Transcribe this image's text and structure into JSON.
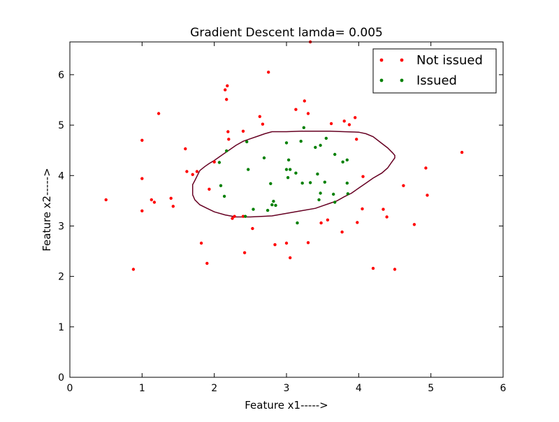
{
  "chart_data": {
    "type": "scatter",
    "title": "Gradient Descent lamda= 0.005",
    "xlabel": "Feature x1----->",
    "ylabel": "Feature x2----->",
    "xlim": [
      0,
      6
    ],
    "ylim": [
      0,
      6.65
    ],
    "xticks": [
      "0",
      "1",
      "2",
      "3",
      "4",
      "5",
      "6"
    ],
    "yticks": [
      "0",
      "1",
      "2",
      "3",
      "4",
      "5",
      "6"
    ],
    "grid": false,
    "legend_position": "top-right",
    "series": [
      {
        "name": "Not issued",
        "color": "#ff0000",
        "marker": "circle",
        "points": [
          [
            0.5,
            3.52
          ],
          [
            0.88,
            2.14
          ],
          [
            1.0,
            3.3
          ],
          [
            1.0,
            3.94
          ],
          [
            1.0,
            4.7
          ],
          [
            1.13,
            3.52
          ],
          [
            1.17,
            3.47
          ],
          [
            1.23,
            5.23
          ],
          [
            1.4,
            3.55
          ],
          [
            1.43,
            3.39
          ],
          [
            1.6,
            4.53
          ],
          [
            1.62,
            4.08
          ],
          [
            1.7,
            4.02
          ],
          [
            1.76,
            4.08
          ],
          [
            1.82,
            2.66
          ],
          [
            1.9,
            2.26
          ],
          [
            1.93,
            3.73
          ],
          [
            2.0,
            4.27
          ],
          [
            2.15,
            5.7
          ],
          [
            2.17,
            5.51
          ],
          [
            2.18,
            5.78
          ],
          [
            2.19,
            4.87
          ],
          [
            2.2,
            4.72
          ],
          [
            2.25,
            3.15
          ],
          [
            2.28,
            3.19
          ],
          [
            2.4,
            4.88
          ],
          [
            2.42,
            2.47
          ],
          [
            2.4,
            3.19
          ],
          [
            2.53,
            2.95
          ],
          [
            2.63,
            5.17
          ],
          [
            2.67,
            5.02
          ],
          [
            2.75,
            6.05
          ],
          [
            2.84,
            2.63
          ],
          [
            3.0,
            2.66
          ],
          [
            3.05,
            2.37
          ],
          [
            3.13,
            5.31
          ],
          [
            3.25,
            5.48
          ],
          [
            3.3,
            2.67
          ],
          [
            3.3,
            5.23
          ],
          [
            3.33,
            6.65
          ],
          [
            3.48,
            3.06
          ],
          [
            3.57,
            3.12
          ],
          [
            3.62,
            5.03
          ],
          [
            3.77,
            2.88
          ],
          [
            3.8,
            5.08
          ],
          [
            3.87,
            5.01
          ],
          [
            3.95,
            5.15
          ],
          [
            3.97,
            4.72
          ],
          [
            3.98,
            3.07
          ],
          [
            4.05,
            3.34
          ],
          [
            4.06,
            3.98
          ],
          [
            4.2,
            2.16
          ],
          [
            4.34,
            3.33
          ],
          [
            4.39,
            3.18
          ],
          [
            4.5,
            2.14
          ],
          [
            4.62,
            3.8
          ],
          [
            4.77,
            3.03
          ],
          [
            4.93,
            4.15
          ],
          [
            4.95,
            3.61
          ],
          [
            5.43,
            4.46
          ]
        ]
      },
      {
        "name": "Issued",
        "color": "#008000",
        "marker": "circle",
        "points": [
          [
            2.07,
            4.26
          ],
          [
            2.09,
            3.8
          ],
          [
            2.14,
            3.59
          ],
          [
            2.17,
            4.49
          ],
          [
            2.43,
            3.19
          ],
          [
            2.45,
            4.67
          ],
          [
            2.47,
            4.12
          ],
          [
            2.54,
            3.33
          ],
          [
            2.69,
            4.35
          ],
          [
            2.74,
            3.31
          ],
          [
            2.78,
            3.84
          ],
          [
            2.8,
            3.42
          ],
          [
            2.82,
            3.49
          ],
          [
            2.85,
            3.41
          ],
          [
            3.0,
            4.12
          ],
          [
            3.0,
            4.65
          ],
          [
            3.02,
            3.96
          ],
          [
            3.03,
            4.31
          ],
          [
            3.05,
            4.12
          ],
          [
            3.13,
            4.05
          ],
          [
            3.15,
            3.06
          ],
          [
            3.2,
            4.68
          ],
          [
            3.22,
            3.85
          ],
          [
            3.24,
            4.95
          ],
          [
            3.33,
            3.86
          ],
          [
            3.4,
            4.56
          ],
          [
            3.43,
            4.03
          ],
          [
            3.45,
            3.52
          ],
          [
            3.47,
            4.6
          ],
          [
            3.47,
            3.65
          ],
          [
            3.53,
            3.87
          ],
          [
            3.55,
            4.74
          ],
          [
            3.65,
            3.63
          ],
          [
            3.67,
            4.42
          ],
          [
            3.67,
            3.47
          ],
          [
            3.78,
            4.27
          ],
          [
            3.84,
            3.85
          ],
          [
            3.84,
            4.31
          ],
          [
            3.85,
            3.64
          ]
        ]
      }
    ],
    "decision_boundary": {
      "color": "#660022",
      "points": [
        [
          1.7,
          3.62
        ],
        [
          1.7,
          3.82
        ],
        [
          1.73,
          3.9
        ],
        [
          1.8,
          4.1
        ],
        [
          1.87,
          4.18
        ],
        [
          1.93,
          4.24
        ],
        [
          2.0,
          4.3
        ],
        [
          2.1,
          4.4
        ],
        [
          2.2,
          4.5
        ],
        [
          2.3,
          4.6
        ],
        [
          2.4,
          4.68
        ],
        [
          2.5,
          4.73
        ],
        [
          2.6,
          4.78
        ],
        [
          2.7,
          4.83
        ],
        [
          2.8,
          4.87
        ],
        [
          3.0,
          4.87
        ],
        [
          3.2,
          4.88
        ],
        [
          3.4,
          4.88
        ],
        [
          3.6,
          4.88
        ],
        [
          3.8,
          4.87
        ],
        [
          4.0,
          4.86
        ],
        [
          4.1,
          4.83
        ],
        [
          4.2,
          4.77
        ],
        [
          4.3,
          4.66
        ],
        [
          4.4,
          4.55
        ],
        [
          4.47,
          4.45
        ],
        [
          4.5,
          4.4
        ],
        [
          4.5,
          4.35
        ],
        [
          4.45,
          4.25
        ],
        [
          4.4,
          4.15
        ],
        [
          4.32,
          4.05
        ],
        [
          4.2,
          3.95
        ],
        [
          4.1,
          3.85
        ],
        [
          4.0,
          3.75
        ],
        [
          3.9,
          3.65
        ],
        [
          3.8,
          3.58
        ],
        [
          3.7,
          3.5
        ],
        [
          3.6,
          3.45
        ],
        [
          3.5,
          3.4
        ],
        [
          3.4,
          3.35
        ],
        [
          3.2,
          3.3
        ],
        [
          3.0,
          3.25
        ],
        [
          2.8,
          3.2
        ],
        [
          2.5,
          3.18
        ],
        [
          2.3,
          3.18
        ],
        [
          2.15,
          3.22
        ],
        [
          2.0,
          3.28
        ],
        [
          1.9,
          3.35
        ],
        [
          1.8,
          3.42
        ],
        [
          1.73,
          3.52
        ],
        [
          1.7,
          3.62
        ]
      ]
    }
  }
}
